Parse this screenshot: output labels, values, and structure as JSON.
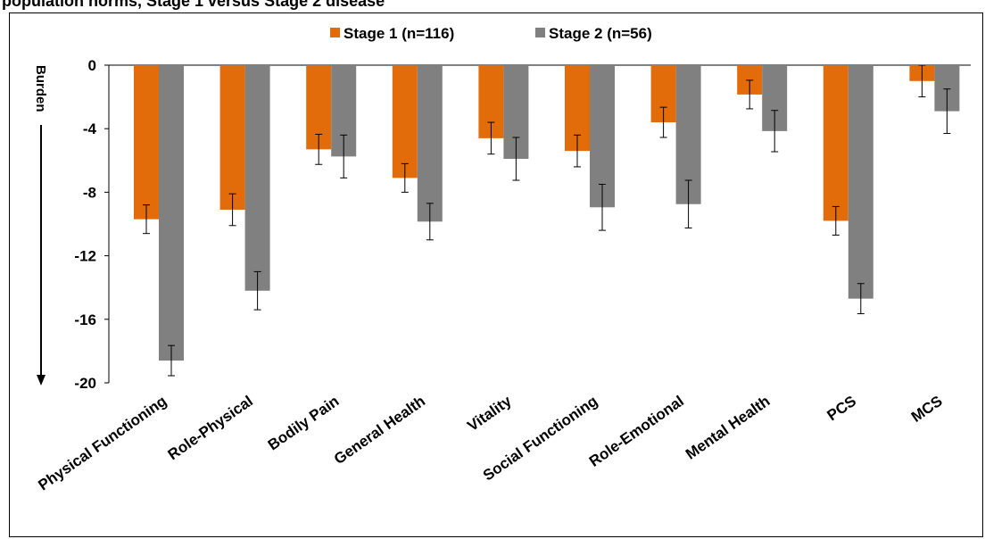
{
  "header": {
    "title_fragment": "population norms, Stage 1 versus Stage 2 disease"
  },
  "chart_data": {
    "type": "bar",
    "title": "",
    "xlabel": "",
    "ylabel": "Burden",
    "ylim": [
      -20,
      0
    ],
    "yticks": [
      0,
      -4,
      -8,
      -12,
      -16,
      -20
    ],
    "grid": false,
    "legend_position": "top-center",
    "categories": [
      "Physical Functioning",
      "Role-Physical",
      "Bodily Pain",
      "General Health",
      "Vitality",
      "Social Functioning",
      "Role-Emotional",
      "Mental Health",
      "PCS",
      "MCS"
    ],
    "series": [
      {
        "name": "Stage 1 (n=116)",
        "color": "#E36C0A",
        "values": [
          -9.7,
          -9.1,
          -5.3,
          -7.1,
          -4.6,
          -5.4,
          -3.6,
          -1.85,
          -9.8,
          -1.0
        ],
        "error": [
          0.9,
          1.0,
          0.95,
          0.9,
          1.0,
          1.0,
          0.95,
          0.9,
          0.9,
          1.0
        ]
      },
      {
        "name": "Stage 2 (n=56)",
        "color": "#808080",
        "values": [
          -18.6,
          -14.2,
          -5.75,
          -9.85,
          -5.9,
          -8.95,
          -8.75,
          -4.15,
          -14.7,
          -2.9
        ],
        "error": [
          0.95,
          1.2,
          1.35,
          1.15,
          1.35,
          1.45,
          1.5,
          1.3,
          0.95,
          1.4
        ]
      }
    ]
  }
}
